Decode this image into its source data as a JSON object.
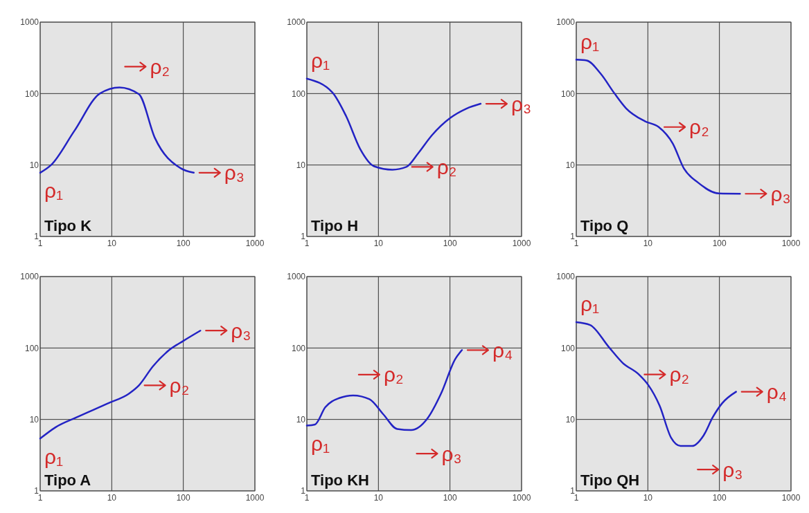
{
  "chart_data": [
    {
      "type": "line",
      "title": "Tipo K",
      "log": "xy",
      "grid": true,
      "xlim": [
        1,
        1000
      ],
      "ylim": [
        1,
        1000
      ],
      "xticks": [
        1,
        10,
        100,
        1000
      ],
      "yticks": [
        1,
        10,
        100,
        1000
      ],
      "series": [
        {
          "color": "#2323c4",
          "x": [
            1,
            1.42,
            3,
            6.8,
            12.8,
            24,
            40,
            92,
            140
          ],
          "values": [
            7.8,
            10,
            30,
            100,
            122,
            98,
            24,
            9,
            7.8
          ]
        }
      ],
      "annotations": [
        "ρ₁",
        "ρ₂",
        "ρ₃"
      ]
    },
    {
      "type": "line",
      "title": "Tipo H",
      "log": "xy",
      "grid": true,
      "xlim": [
        1,
        1000
      ],
      "ylim": [
        1,
        1000
      ],
      "xticks": [
        1,
        10,
        100,
        1000
      ],
      "yticks": [
        1,
        10,
        100,
        1000
      ],
      "series": [
        {
          "color": "#2323c4",
          "x": [
            1,
            2.27,
            3.55,
            5.55,
            8.7,
            15.7,
            24.6,
            35.8,
            55.8,
            101,
            170,
            268
          ],
          "values": [
            162,
            104,
            48,
            16.8,
            9.6,
            8.6,
            9.4,
            14.5,
            26,
            45.6,
            61.6,
            72
          ]
        }
      ],
      "annotations": [
        "ρ₁",
        "ρ₂",
        "ρ₃"
      ]
    },
    {
      "type": "line",
      "title": "Tipo Q",
      "log": "xy",
      "grid": true,
      "xlim": [
        1,
        1000
      ],
      "ylim": [
        1,
        1000
      ],
      "xticks": [
        1,
        10,
        100,
        1000
      ],
      "yticks": [
        1,
        10,
        100,
        1000
      ],
      "series": [
        {
          "color": "#2323c4",
          "x": [
            1,
            1.4,
            2.19,
            3.43,
            4.98,
            9.1,
            14.2,
            22.3,
            32,
            50,
            98.6,
            194
          ],
          "values": [
            298,
            290,
            190,
            100,
            62,
            41,
            34,
            20,
            8.9,
            5.7,
            4,
            3.96
          ]
        }
      ],
      "annotations": [
        "ρ₁",
        "ρ₂",
        "ρ₃"
      ]
    },
    {
      "type": "line",
      "title": "Tipo A",
      "log": "xy",
      "grid": true,
      "xlim": [
        1,
        1000
      ],
      "ylim": [
        1,
        1000
      ],
      "xticks": [
        1,
        10,
        100,
        1000
      ],
      "yticks": [
        1,
        10,
        100,
        1000
      ],
      "series": [
        {
          "color": "#2323c4",
          "x": [
            1,
            1.65,
            3.22,
            9.1,
            17.2,
            24,
            37.7,
            63,
            99,
            173
          ],
          "values": [
            5.4,
            7.8,
            10.7,
            17,
            22.8,
            30,
            55.5,
            93,
            125,
            175
          ]
        }
      ],
      "annotations": [
        "ρ₁",
        "ρ₂",
        "ρ₃"
      ]
    },
    {
      "type": "line",
      "title": "Tipo KH",
      "log": "xy",
      "grid": true,
      "xlim": [
        1,
        1000
      ],
      "ylim": [
        1,
        1000
      ],
      "xticks": [
        1,
        10,
        100,
        1000
      ],
      "yticks": [
        1,
        10,
        100,
        1000
      ],
      "series": [
        {
          "color": "#2323c4",
          "x": [
            1,
            1.3,
            1.81,
            2.84,
            4.44,
            7.5,
            11.7,
            18.3,
            28.6,
            48,
            75,
            118,
            147
          ],
          "values": [
            8.2,
            8.5,
            14.8,
            19.9,
            21.7,
            19.2,
            11.8,
            7.35,
            7.1,
            10.2,
            23,
            69.6,
            93.6
          ]
        }
      ],
      "annotations": [
        "ρ₁",
        "ρ₂",
        "ρ₃",
        "ρ₄"
      ]
    },
    {
      "type": "line",
      "title": "Tipo QH",
      "log": "xy",
      "grid": true,
      "xlim": [
        1,
        1000
      ],
      "ylim": [
        1,
        1000
      ],
      "xticks": [
        1,
        10,
        100,
        1000
      ],
      "yticks": [
        1,
        10,
        100,
        1000
      ],
      "series": [
        {
          "color": "#2323c4",
          "x": [
            1,
            1.56,
            2.83,
            4.44,
            7.5,
            10.1,
            14.6,
            21.2,
            28.6,
            41.5,
            60,
            81,
            109,
            171
          ],
          "values": [
            230,
            210,
            104,
            62,
            42.6,
            30.5,
            15.6,
            5.5,
            4.25,
            4.25,
            5.95,
            10.8,
            16.8,
            24.4
          ]
        }
      ],
      "annotations": [
        "ρ₁",
        "ρ₂",
        "ρ₃",
        "ρ₄"
      ]
    }
  ]
}
